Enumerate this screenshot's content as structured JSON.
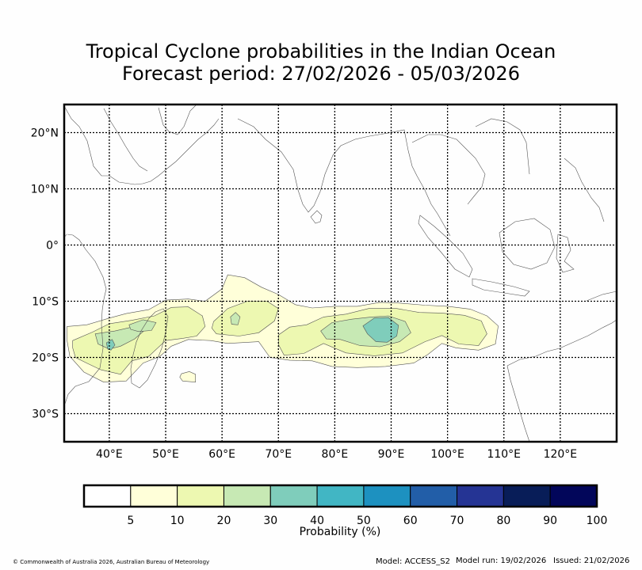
{
  "title": {
    "line1": "Tropical Cyclone probabilities in the Indian Ocean",
    "line2": "Forecast period: 27/02/2026 - 05/03/2026"
  },
  "map": {
    "lon_range": [
      32,
      130
    ],
    "lat_range": [
      -35,
      25
    ],
    "lon_ticks": [
      40,
      50,
      60,
      70,
      80,
      90,
      100,
      110,
      120
    ],
    "lat_ticks": [
      20,
      10,
      0,
      -10,
      -20,
      -30
    ],
    "lon_tick_labels": [
      "40°E",
      "50°E",
      "60°E",
      "70°E",
      "80°E",
      "90°E",
      "100°E",
      "110°E",
      "120°E"
    ],
    "lat_tick_labels": [
      "20°N",
      "10°N",
      "0°",
      "10°S",
      "20°S",
      "30°S"
    ]
  },
  "probability_regions": [
    {
      "level": 5,
      "color": "#ffffd9",
      "points": [
        [
          32.5,
          -14.5
        ],
        [
          36,
          -14.2
        ],
        [
          40,
          -13
        ],
        [
          43,
          -12.2
        ],
        [
          47,
          -11.5
        ],
        [
          50,
          -9.8
        ],
        [
          54,
          -9.6
        ],
        [
          57,
          -10
        ],
        [
          60,
          -7.8
        ],
        [
          61,
          -5.3
        ],
        [
          64,
          -5.8
        ],
        [
          67,
          -7.5
        ],
        [
          70,
          -8.8
        ],
        [
          73,
          -10.6
        ],
        [
          76,
          -11.2
        ],
        [
          80,
          -10.9
        ],
        [
          84,
          -10.9
        ],
        [
          88,
          -10.2
        ],
        [
          91,
          -10.3
        ],
        [
          96,
          -10.7
        ],
        [
          100,
          -10.9
        ],
        [
          104,
          -11.4
        ],
        [
          107,
          -12.6
        ],
        [
          109,
          -14.4
        ],
        [
          108.5,
          -17.6
        ],
        [
          105.5,
          -18.7
        ],
        [
          101.5,
          -18.3
        ],
        [
          99,
          -17.5
        ],
        [
          96.5,
          -19.5
        ],
        [
          94,
          -21
        ],
        [
          89,
          -21.6
        ],
        [
          84,
          -21.8
        ],
        [
          79.5,
          -21.6
        ],
        [
          76,
          -20.6
        ],
        [
          72,
          -20.5
        ],
        [
          68.5,
          -20
        ],
        [
          66.5,
          -17.2
        ],
        [
          61,
          -17.5
        ],
        [
          58,
          -17
        ],
        [
          54,
          -16.8
        ],
        [
          51,
          -18
        ],
        [
          49,
          -19.8
        ],
        [
          46,
          -21
        ],
        [
          43,
          -24.2
        ],
        [
          39,
          -24.4
        ],
        [
          35.5,
          -22.6
        ],
        [
          33,
          -19.8
        ],
        [
          32.5,
          -17
        ]
      ]
    },
    {
      "level": 5,
      "color": "#ffffd9",
      "points": [
        [
          52.8,
          -22.9
        ],
        [
          54.2,
          -22.5
        ],
        [
          55.3,
          -23
        ],
        [
          55.3,
          -24.4
        ],
        [
          53,
          -24.2
        ],
        [
          52.5,
          -23.5
        ]
      ]
    },
    {
      "level": 10,
      "color": "#edf8b1",
      "points": [
        [
          33.5,
          -17
        ],
        [
          37,
          -15.5
        ],
        [
          40,
          -14
        ],
        [
          44,
          -13.4
        ],
        [
          48,
          -12.6
        ],
        [
          51,
          -11.1
        ],
        [
          54,
          -11
        ],
        [
          56.5,
          -12.6
        ],
        [
          57,
          -14.5
        ],
        [
          55.5,
          -16.2
        ],
        [
          53,
          -16.6
        ],
        [
          50,
          -17
        ],
        [
          47,
          -19.8
        ],
        [
          44,
          -20.6
        ],
        [
          42,
          -23
        ],
        [
          38.5,
          -22.2
        ],
        [
          36,
          -21
        ],
        [
          34,
          -20
        ],
        [
          33.5,
          -18.3
        ]
      ]
    },
    {
      "level": 10,
      "color": "#edf8b1",
      "points": [
        [
          58.5,
          -13.6
        ],
        [
          61,
          -11.3
        ],
        [
          64.5,
          -10
        ],
        [
          68,
          -10
        ],
        [
          70,
          -11.3
        ],
        [
          69.3,
          -13.5
        ],
        [
          66.5,
          -15.6
        ],
        [
          63,
          -16.2
        ],
        [
          59,
          -15.8
        ],
        [
          58.2,
          -14.8
        ]
      ]
    },
    {
      "level": 10,
      "color": "#edf8b1",
      "points": [
        [
          70,
          -16
        ],
        [
          72,
          -14.6
        ],
        [
          75,
          -14.2
        ],
        [
          78,
          -12.8
        ],
        [
          82,
          -12.3
        ],
        [
          86,
          -11.3
        ],
        [
          91,
          -11.3
        ],
        [
          95,
          -12
        ],
        [
          99,
          -12.1
        ],
        [
          103,
          -12.5
        ],
        [
          106,
          -13.5
        ],
        [
          107,
          -15.8
        ],
        [
          105.5,
          -17.9
        ],
        [
          102,
          -17.6
        ],
        [
          99,
          -16.1
        ],
        [
          96,
          -17.2
        ],
        [
          92,
          -19.2
        ],
        [
          87,
          -19.7
        ],
        [
          82,
          -19.2
        ],
        [
          78,
          -17.5
        ],
        [
          74.5,
          -19.3
        ],
        [
          71,
          -19.6
        ],
        [
          70,
          -17.7
        ]
      ]
    },
    {
      "level": 20,
      "color": "#c7e9b4",
      "points": [
        [
          37.5,
          -15.8
        ],
        [
          41,
          -15.3
        ],
        [
          44,
          -14.6
        ],
        [
          46,
          -15.4
        ],
        [
          44.5,
          -16.7
        ],
        [
          42,
          -18
        ],
        [
          40,
          -18.5
        ],
        [
          38,
          -17.6
        ]
      ]
    },
    {
      "level": 20,
      "color": "#c7e9b4",
      "points": [
        [
          43.5,
          -14.2
        ],
        [
          46,
          -13.3
        ],
        [
          48.3,
          -13.8
        ],
        [
          47.5,
          -15.2
        ],
        [
          45.2,
          -15.4
        ],
        [
          43.8,
          -15
        ]
      ]
    },
    {
      "level": 20,
      "color": "#c7e9b4",
      "points": [
        [
          61.5,
          -12.8
        ],
        [
          62.4,
          -12
        ],
        [
          63.2,
          -12.8
        ],
        [
          62.8,
          -14.2
        ],
        [
          61.7,
          -14.1
        ]
      ]
    },
    {
      "level": 20,
      "color": "#c7e9b4",
      "points": [
        [
          77.5,
          -15.3
        ],
        [
          79.5,
          -13.8
        ],
        [
          83,
          -13.2
        ],
        [
          86.5,
          -12.8
        ],
        [
          89.5,
          -12.6
        ],
        [
          92.5,
          -13.6
        ],
        [
          93.5,
          -15.6
        ],
        [
          91.5,
          -17.2
        ],
        [
          88,
          -18.1
        ],
        [
          84.5,
          -17.9
        ],
        [
          81,
          -16.8
        ],
        [
          78.5,
          -16.7
        ]
      ]
    },
    {
      "level": 30,
      "color": "#7fcdbb",
      "points": [
        [
          85,
          -14.4
        ],
        [
          87,
          -13
        ],
        [
          89.5,
          -12.9
        ],
        [
          91.3,
          -14.3
        ],
        [
          91,
          -16.2
        ],
        [
          89.3,
          -17.3
        ],
        [
          87.3,
          -17.2
        ],
        [
          85.8,
          -15.8
        ]
      ]
    },
    {
      "level": 30,
      "color": "#7fcdbb",
      "points": [
        [
          39.5,
          -17.4
        ],
        [
          40.5,
          -16.8
        ],
        [
          41,
          -17.8
        ],
        [
          40.3,
          -18.7
        ],
        [
          39.7,
          -18.5
        ]
      ]
    }
  ],
  "colorbar": {
    "colors": [
      "#ffffff",
      "#ffffd9",
      "#edf8b1",
      "#c7e9b4",
      "#7fcdbb",
      "#41b6c4",
      "#1d91c0",
      "#225ea8",
      "#253494",
      "#081d58",
      "#02065a"
    ],
    "labels": [
      "5",
      "10",
      "20",
      "30",
      "40",
      "50",
      "60",
      "70",
      "80",
      "90",
      "100"
    ],
    "title": "Probability (%)"
  },
  "footer": {
    "copyright": "© Commonwealth of Australia 2026, Australian Bureau of Meteorology",
    "model": "Model: ACCESS_S2",
    "model_run": "Model run: 19/02/2026",
    "issued": "Issued: 21/02/2026"
  }
}
